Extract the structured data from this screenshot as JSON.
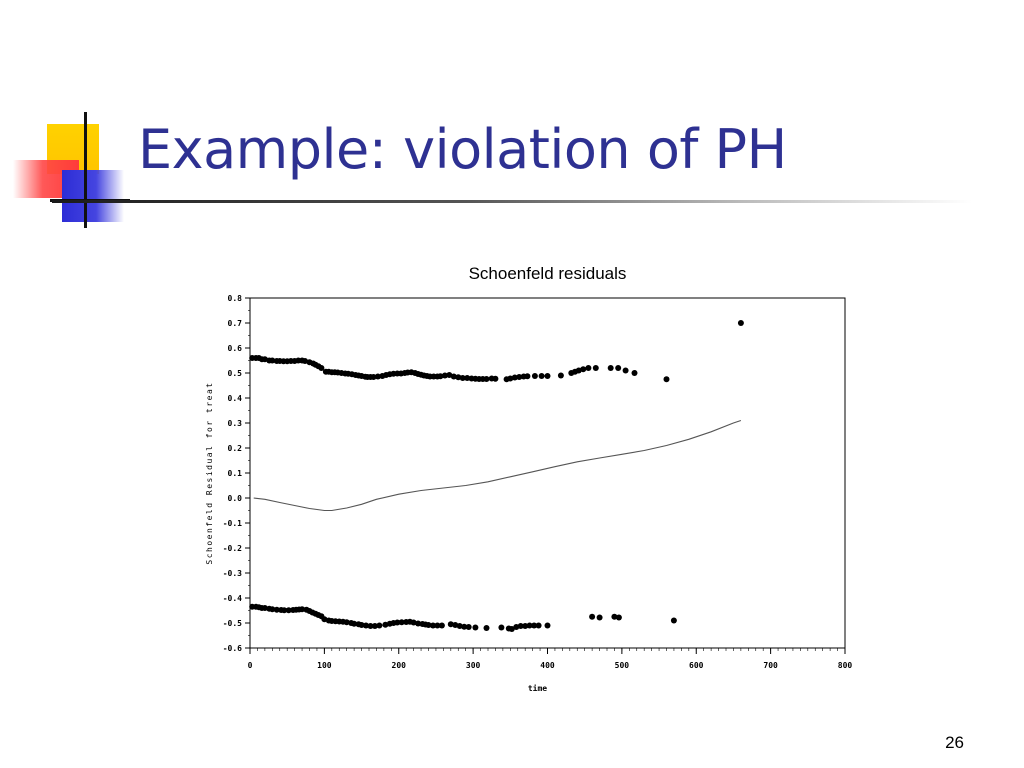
{
  "slide": {
    "title": "Example: violation of PH",
    "page_number": "26"
  },
  "chart_data": {
    "type": "scatter",
    "title": "Schoenfeld residuals",
    "xlabel": "time",
    "ylabel": "Schoenfeld Residual for treat",
    "xlim": [
      0,
      800
    ],
    "ylim": [
      -0.6,
      0.8
    ],
    "x_ticks": [
      "0",
      "100",
      "200",
      "300",
      "400",
      "500",
      "600",
      "700",
      "800"
    ],
    "y_ticks": [
      "0.8",
      "0.7",
      "0.6",
      "0.5",
      "0.4",
      "0.3",
      "0.2",
      "0.1",
      "0.0",
      "-0.1",
      "-0.2",
      "-0.3",
      "-0.4",
      "-0.5",
      "-0.6"
    ],
    "grid": false,
    "legend": "none",
    "series": [
      {
        "kind": "points",
        "color": "#000000",
        "points": [
          [
            3,
            0.56
          ],
          [
            8,
            0.56
          ],
          [
            12,
            0.56
          ],
          [
            16,
            0.555
          ],
          [
            20,
            0.555
          ],
          [
            26,
            0.55
          ],
          [
            30,
            0.55
          ],
          [
            36,
            0.548
          ],
          [
            40,
            0.548
          ],
          [
            45,
            0.547
          ],
          [
            50,
            0.547
          ],
          [
            55,
            0.548
          ],
          [
            60,
            0.548
          ],
          [
            65,
            0.55
          ],
          [
            70,
            0.55
          ],
          [
            74,
            0.548
          ],
          [
            80,
            0.543
          ],
          [
            85,
            0.538
          ],
          [
            88,
            0.533
          ],
          [
            92,
            0.527
          ],
          [
            96,
            0.52
          ],
          [
            102,
            0.505
          ],
          [
            106,
            0.505
          ],
          [
            110,
            0.503
          ],
          [
            114,
            0.503
          ],
          [
            118,
            0.502
          ],
          [
            123,
            0.5
          ],
          [
            128,
            0.498
          ],
          [
            132,
            0.497
          ],
          [
            137,
            0.495
          ],
          [
            142,
            0.492
          ],
          [
            146,
            0.49
          ],
          [
            150,
            0.488
          ],
          [
            155,
            0.485
          ],
          [
            158,
            0.484
          ],
          [
            162,
            0.484
          ],
          [
            166,
            0.484
          ],
          [
            172,
            0.486
          ],
          [
            178,
            0.488
          ],
          [
            183,
            0.492
          ],
          [
            188,
            0.495
          ],
          [
            193,
            0.497
          ],
          [
            198,
            0.498
          ],
          [
            203,
            0.498
          ],
          [
            208,
            0.5
          ],
          [
            212,
            0.502
          ],
          [
            217,
            0.503
          ],
          [
            222,
            0.5
          ],
          [
            226,
            0.496
          ],
          [
            230,
            0.493
          ],
          [
            234,
            0.49
          ],
          [
            238,
            0.488
          ],
          [
            242,
            0.486
          ],
          [
            247,
            0.486
          ],
          [
            252,
            0.486
          ],
          [
            256,
            0.487
          ],
          [
            262,
            0.49
          ],
          [
            268,
            0.492
          ],
          [
            274,
            0.486
          ],
          [
            280,
            0.483
          ],
          [
            286,
            0.48
          ],
          [
            292,
            0.48
          ],
          [
            298,
            0.478
          ],
          [
            303,
            0.477
          ],
          [
            308,
            0.476
          ],
          [
            313,
            0.476
          ],
          [
            318,
            0.476
          ],
          [
            325,
            0.478
          ],
          [
            330,
            0.477
          ],
          [
            345,
            0.475
          ],
          [
            350,
            0.478
          ],
          [
            356,
            0.482
          ],
          [
            362,
            0.484
          ],
          [
            368,
            0.486
          ],
          [
            373,
            0.487
          ],
          [
            383,
            0.488
          ],
          [
            392,
            0.488
          ],
          [
            400,
            0.488
          ],
          [
            418,
            0.49
          ],
          [
            432,
            0.5
          ],
          [
            437,
            0.505
          ],
          [
            442,
            0.51
          ],
          [
            448,
            0.515
          ],
          [
            455,
            0.52
          ],
          [
            465,
            0.52
          ],
          [
            485,
            0.52
          ],
          [
            495,
            0.52
          ],
          [
            505,
            0.51
          ],
          [
            517,
            0.5
          ],
          [
            560,
            0.475
          ],
          [
            660,
            0.7
          ],
          [
            3,
            -0.435
          ],
          [
            8,
            -0.435
          ],
          [
            12,
            -0.437
          ],
          [
            16,
            -0.44
          ],
          [
            20,
            -0.44
          ],
          [
            26,
            -0.443
          ],
          [
            30,
            -0.445
          ],
          [
            36,
            -0.447
          ],
          [
            42,
            -0.448
          ],
          [
            46,
            -0.449
          ],
          [
            52,
            -0.449
          ],
          [
            58,
            -0.448
          ],
          [
            62,
            -0.447
          ],
          [
            66,
            -0.446
          ],
          [
            70,
            -0.445
          ],
          [
            76,
            -0.447
          ],
          [
            80,
            -0.452
          ],
          [
            84,
            -0.458
          ],
          [
            88,
            -0.463
          ],
          [
            92,
            -0.468
          ],
          [
            96,
            -0.473
          ],
          [
            100,
            -0.485
          ],
          [
            106,
            -0.49
          ],
          [
            110,
            -0.492
          ],
          [
            115,
            -0.493
          ],
          [
            120,
            -0.494
          ],
          [
            125,
            -0.495
          ],
          [
            130,
            -0.497
          ],
          [
            136,
            -0.5
          ],
          [
            140,
            -0.503
          ],
          [
            146,
            -0.505
          ],
          [
            150,
            -0.508
          ],
          [
            156,
            -0.51
          ],
          [
            162,
            -0.512
          ],
          [
            168,
            -0.512
          ],
          [
            174,
            -0.51
          ],
          [
            182,
            -0.507
          ],
          [
            188,
            -0.503
          ],
          [
            193,
            -0.5
          ],
          [
            198,
            -0.498
          ],
          [
            204,
            -0.497
          ],
          [
            210,
            -0.496
          ],
          [
            215,
            -0.495
          ],
          [
            220,
            -0.498
          ],
          [
            226,
            -0.502
          ],
          [
            232,
            -0.504
          ],
          [
            236,
            -0.506
          ],
          [
            240,
            -0.508
          ],
          [
            246,
            -0.51
          ],
          [
            252,
            -0.51
          ],
          [
            258,
            -0.51
          ],
          [
            270,
            -0.505
          ],
          [
            276,
            -0.508
          ],
          [
            282,
            -0.512
          ],
          [
            288,
            -0.515
          ],
          [
            294,
            -0.516
          ],
          [
            303,
            -0.518
          ],
          [
            318,
            -0.52
          ],
          [
            338,
            -0.518
          ],
          [
            348,
            -0.522
          ],
          [
            352,
            -0.524
          ],
          [
            358,
            -0.516
          ],
          [
            364,
            -0.512
          ],
          [
            370,
            -0.512
          ],
          [
            376,
            -0.51
          ],
          [
            382,
            -0.51
          ],
          [
            388,
            -0.51
          ],
          [
            400,
            -0.51
          ],
          [
            460,
            -0.475
          ],
          [
            470,
            -0.478
          ],
          [
            490,
            -0.475
          ],
          [
            496,
            -0.478
          ],
          [
            570,
            -0.49
          ]
        ]
      },
      {
        "kind": "smooth",
        "color": "#555555",
        "points": [
          [
            5,
            0.0
          ],
          [
            20,
            -0.005
          ],
          [
            40,
            -0.018
          ],
          [
            60,
            -0.03
          ],
          [
            80,
            -0.042
          ],
          [
            100,
            -0.05
          ],
          [
            110,
            -0.05
          ],
          [
            130,
            -0.04
          ],
          [
            150,
            -0.025
          ],
          [
            170,
            -0.005
          ],
          [
            200,
            0.015
          ],
          [
            230,
            0.03
          ],
          [
            260,
            0.04
          ],
          [
            290,
            0.05
          ],
          [
            320,
            0.065
          ],
          [
            350,
            0.085
          ],
          [
            380,
            0.105
          ],
          [
            410,
            0.125
          ],
          [
            440,
            0.145
          ],
          [
            470,
            0.16
          ],
          [
            500,
            0.175
          ],
          [
            530,
            0.19
          ],
          [
            560,
            0.21
          ],
          [
            590,
            0.235
          ],
          [
            620,
            0.265
          ],
          [
            650,
            0.3
          ],
          [
            660,
            0.31
          ]
        ]
      }
    ]
  }
}
